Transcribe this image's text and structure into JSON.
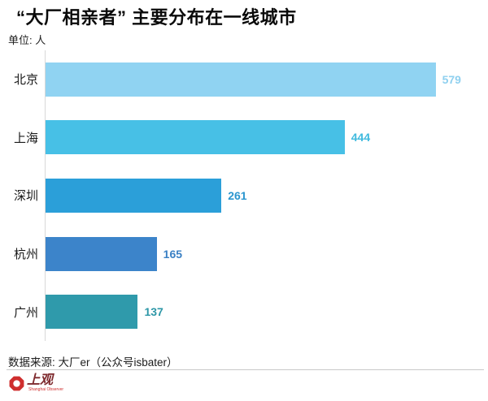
{
  "header": {
    "title": "“大厂相亲者” 主要分布在一线城市",
    "unit_label": "单位: 人"
  },
  "chart_data": {
    "type": "bar",
    "orientation": "horizontal",
    "title": "“大厂相亲者” 主要分布在一线城市",
    "unit": "人",
    "categories": [
      "北京",
      "上海",
      "深圳",
      "杭州",
      "广州"
    ],
    "values": [
      579,
      444,
      261,
      165,
      137
    ],
    "bar_colors": [
      "#90d3f2",
      "#47c0e6",
      "#2b9fd9",
      "#3c84ca",
      "#2f9aab"
    ],
    "value_label_colors": [
      "#8fd0ef",
      "#40bade",
      "#2b96cf",
      "#3a80c4",
      "#2d97a7"
    ],
    "xlim": [
      0,
      600
    ],
    "grid": false,
    "legend": false,
    "axis_line_color": "#d8d8d8"
  },
  "footer": {
    "source": "数据来源: 大厂er（公众号isbater）",
    "logo_name": "上观",
    "logo_subtitle": "Shanghai Observer",
    "logo_red": "#cf2e2e",
    "logo_name_color": "#7e2a2e"
  }
}
